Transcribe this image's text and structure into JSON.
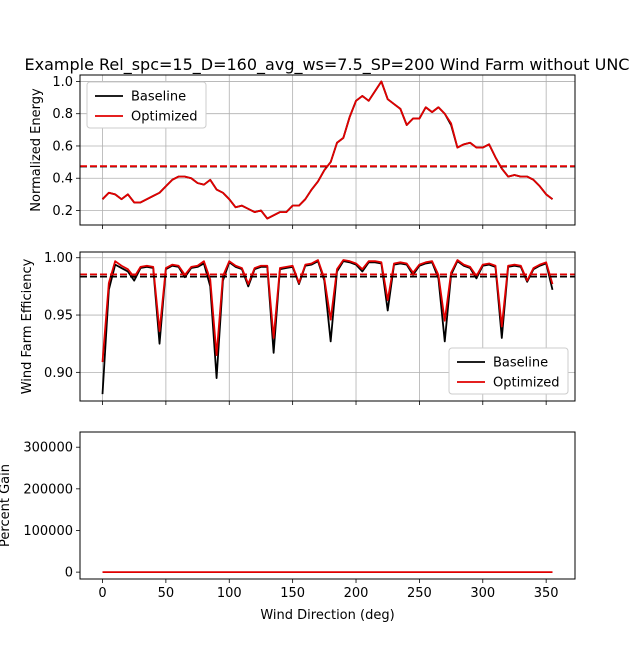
{
  "figure": {
    "title": "Example Rel_spc=15_D=160_avg_ws=7.5_SP=200 Wind Farm without UNC",
    "xlabel": "Wind Direction (deg)"
  },
  "legend": {
    "baseline_label": "Baseline",
    "optimized_label": "Optimized"
  },
  "colors": {
    "baseline": "#000000",
    "optimized": "#e00000"
  },
  "chart_data": [
    {
      "type": "line",
      "ylabel": "Normalized Energy",
      "xlim": [
        -17.75,
        372.75
      ],
      "ylim": [
        0.11,
        1.04
      ],
      "xticks": [
        0,
        50,
        100,
        150,
        200,
        250,
        300,
        350
      ],
      "yticks": [
        0.2,
        0.4,
        0.6,
        0.8,
        1.0
      ],
      "ytick_labels": [
        "0.2",
        "0.4",
        "0.6",
        "0.8",
        "1.0"
      ],
      "grid": true,
      "legend_position": "upper-left",
      "x": [
        0,
        5,
        10,
        15,
        20,
        25,
        30,
        35,
        40,
        45,
        50,
        55,
        60,
        65,
        70,
        75,
        80,
        85,
        90,
        95,
        100,
        105,
        110,
        115,
        120,
        125,
        130,
        135,
        140,
        145,
        150,
        155,
        160,
        165,
        170,
        175,
        180,
        185,
        190,
        195,
        200,
        205,
        210,
        215,
        220,
        225,
        230,
        235,
        240,
        245,
        250,
        255,
        260,
        265,
        270,
        275,
        280,
        285,
        290,
        295,
        300,
        305,
        310,
        315,
        320,
        325,
        330,
        335,
        340,
        345,
        350,
        355
      ],
      "series": [
        {
          "name": "Baseline",
          "values": [
            0.27,
            0.31,
            0.3,
            0.27,
            0.3,
            0.25,
            0.25,
            0.27,
            0.29,
            0.31,
            0.35,
            0.39,
            0.41,
            0.41,
            0.4,
            0.37,
            0.36,
            0.39,
            0.33,
            0.31,
            0.27,
            0.22,
            0.23,
            0.21,
            0.19,
            0.2,
            0.15,
            0.17,
            0.19,
            0.19,
            0.23,
            0.23,
            0.27,
            0.33,
            0.38,
            0.45,
            0.5,
            0.62,
            0.65,
            0.78,
            0.88,
            0.91,
            0.88,
            0.94,
            1.0,
            0.89,
            0.86,
            0.83,
            0.73,
            0.77,
            0.77,
            0.84,
            0.81,
            0.84,
            0.8,
            0.73,
            0.59,
            0.61,
            0.62,
            0.59,
            0.59,
            0.61,
            0.53,
            0.46,
            0.41,
            0.42,
            0.41,
            0.41,
            0.39,
            0.35,
            0.3,
            0.27
          ]
        },
        {
          "name": "Optimized",
          "values": [
            0.27,
            0.31,
            0.3,
            0.27,
            0.3,
            0.25,
            0.25,
            0.27,
            0.29,
            0.31,
            0.35,
            0.39,
            0.41,
            0.41,
            0.4,
            0.37,
            0.36,
            0.39,
            0.33,
            0.31,
            0.27,
            0.22,
            0.23,
            0.21,
            0.19,
            0.2,
            0.15,
            0.17,
            0.19,
            0.19,
            0.23,
            0.23,
            0.27,
            0.33,
            0.38,
            0.45,
            0.5,
            0.62,
            0.65,
            0.78,
            0.88,
            0.91,
            0.88,
            0.94,
            1.0,
            0.89,
            0.86,
            0.83,
            0.73,
            0.77,
            0.77,
            0.84,
            0.81,
            0.84,
            0.8,
            0.74,
            0.59,
            0.61,
            0.62,
            0.59,
            0.59,
            0.61,
            0.53,
            0.46,
            0.41,
            0.42,
            0.41,
            0.41,
            0.39,
            0.35,
            0.3,
            0.27
          ]
        }
      ],
      "hlines": [
        {
          "series": "Baseline",
          "y": 0.473
        },
        {
          "series": "Optimized",
          "y": 0.475
        }
      ]
    },
    {
      "type": "line",
      "ylabel": "Wind Farm Efficiency",
      "xlim": [
        -17.75,
        372.75
      ],
      "ylim": [
        0.875,
        1.005
      ],
      "xticks": [
        0,
        50,
        100,
        150,
        200,
        250,
        300,
        350
      ],
      "yticks": [
        0.9,
        0.95,
        1.0
      ],
      "ytick_labels": [
        "0.90",
        "0.95",
        "1.00"
      ],
      "grid": true,
      "legend_position": "lower-right",
      "x": [
        0,
        5,
        10,
        15,
        20,
        25,
        30,
        35,
        40,
        45,
        50,
        55,
        60,
        65,
        70,
        75,
        80,
        85,
        90,
        95,
        100,
        105,
        110,
        115,
        120,
        125,
        130,
        135,
        140,
        145,
        150,
        155,
        160,
        165,
        170,
        175,
        180,
        185,
        190,
        195,
        200,
        205,
        210,
        215,
        220,
        225,
        230,
        235,
        240,
        245,
        250,
        255,
        260,
        265,
        270,
        275,
        280,
        285,
        290,
        295,
        300,
        305,
        310,
        315,
        320,
        325,
        330,
        335,
        340,
        345,
        350,
        355
      ],
      "series": [
        {
          "name": "Baseline",
          "values": [
            0.881,
            0.972,
            0.994,
            0.991,
            0.988,
            0.98,
            0.991,
            0.992,
            0.991,
            0.925,
            0.99,
            0.993,
            0.992,
            0.983,
            0.991,
            0.992,
            0.995,
            0.975,
            0.895,
            0.98,
            0.996,
            0.992,
            0.99,
            0.975,
            0.99,
            0.992,
            0.992,
            0.917,
            0.99,
            0.991,
            0.992,
            0.977,
            0.993,
            0.994,
            0.997,
            0.98,
            0.927,
            0.988,
            0.997,
            0.996,
            0.994,
            0.988,
            0.996,
            0.996,
            0.995,
            0.954,
            0.994,
            0.995,
            0.994,
            0.985,
            0.993,
            0.995,
            0.996,
            0.982,
            0.927,
            0.985,
            0.997,
            0.993,
            0.991,
            0.982,
            0.993,
            0.994,
            0.992,
            0.93,
            0.992,
            0.993,
            0.992,
            0.979,
            0.99,
            0.993,
            0.995,
            0.972
          ]
        },
        {
          "name": "Optimized",
          "values": [
            0.909,
            0.978,
            0.997,
            0.993,
            0.99,
            0.983,
            0.992,
            0.993,
            0.992,
            0.936,
            0.991,
            0.994,
            0.993,
            0.985,
            0.992,
            0.993,
            0.997,
            0.981,
            0.915,
            0.984,
            0.997,
            0.993,
            0.991,
            0.977,
            0.991,
            0.993,
            0.993,
            0.93,
            0.991,
            0.992,
            0.993,
            0.978,
            0.994,
            0.995,
            0.998,
            0.982,
            0.946,
            0.99,
            0.998,
            0.997,
            0.995,
            0.99,
            0.997,
            0.997,
            0.996,
            0.963,
            0.995,
            0.996,
            0.995,
            0.987,
            0.994,
            0.996,
            0.997,
            0.985,
            0.945,
            0.987,
            0.998,
            0.994,
            0.992,
            0.984,
            0.994,
            0.995,
            0.993,
            0.94,
            0.993,
            0.994,
            0.993,
            0.98,
            0.991,
            0.994,
            0.996,
            0.977
          ]
        }
      ],
      "hlines": [
        {
          "series": "Baseline",
          "y": 0.9835
        },
        {
          "series": "Optimized",
          "y": 0.9855
        }
      ]
    },
    {
      "type": "line",
      "ylabel": "Percent Gain",
      "xlim": [
        -17.75,
        372.75
      ],
      "ylim": [
        -16500,
        336500
      ],
      "xticks": [
        0,
        50,
        100,
        150,
        200,
        250,
        300,
        350
      ],
      "xtick_labels": [
        "0",
        "50",
        "100",
        "150",
        "200",
        "250",
        "300",
        "350"
      ],
      "yticks": [
        0,
        100000,
        200000,
        300000
      ],
      "ytick_labels": [
        "0",
        "100000",
        "200000",
        "300000"
      ],
      "grid": false,
      "x": [
        0,
        355
      ],
      "series": [
        {
          "name": "Percent Gain",
          "values": [
            0,
            0
          ]
        }
      ]
    }
  ]
}
